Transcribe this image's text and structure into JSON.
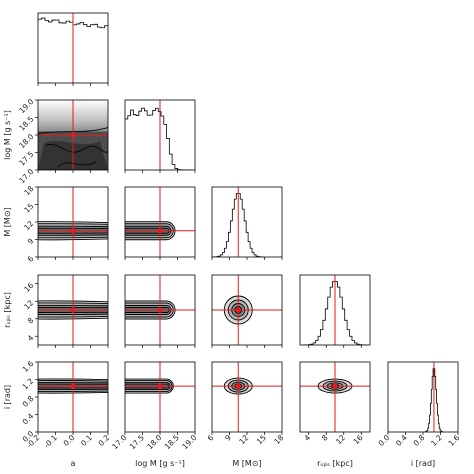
{
  "chart_data": {
    "type": "corner",
    "parameters": [
      {
        "key": "a",
        "label": "a",
        "lim": [
          -0.2,
          0.2
        ],
        "ticks": [
          "-0.2",
          "-0.1",
          "0.0",
          "0.1",
          "0.2"
        ],
        "tickvals": [
          -0.2,
          -0.1,
          0.0,
          0.1,
          0.2
        ],
        "truth": 0.0
      },
      {
        "key": "logM",
        "label": "log M [g s⁻¹]",
        "lim": [
          17.0,
          19.0
        ],
        "ticks": [
          "17.0",
          "17.5",
          "18.0",
          "18.5",
          "19.0"
        ],
        "tickvals": [
          17.0,
          17.5,
          18.0,
          18.5,
          19.0
        ],
        "truth": 18.0
      },
      {
        "key": "M",
        "label": "M [M⊙]",
        "lim": [
          6,
          18
        ],
        "ticks": [
          "6",
          "9",
          "12",
          "15",
          "18"
        ],
        "tickvals": [
          6,
          9,
          12,
          15,
          18
        ],
        "truth": 10.5
      },
      {
        "key": "r_obs",
        "label": "rₒᵦₛ [kpc]",
        "lim": [
          2,
          18
        ],
        "ticks": [
          "4",
          "8",
          "12",
          "16"
        ],
        "tickvals": [
          4,
          8,
          12,
          16
        ],
        "truth": 10.0
      },
      {
        "key": "i",
        "label": "i [rad]",
        "lim": [
          0.0,
          1.6
        ],
        "ticks": [
          "0.0",
          "0.4",
          "0.8",
          "1.2",
          "1.6"
        ],
        "tickvals": [
          0.0,
          0.4,
          0.8,
          1.2,
          1.6
        ],
        "truth": 1.05
      }
    ],
    "xlabels": [
      "a",
      "log M [g s⁻¹]",
      "M [M⊙]",
      "rₒᵦₛ [kpc]",
      "i [rad]"
    ],
    "ylabels": [
      "",
      "log M [g s⁻¹]",
      "M [M⊙]",
      "rₒᵦₛ [kpc]",
      "i [rad]"
    ],
    "marginals": [
      {
        "param": "a",
        "x": [
          -0.2,
          -0.16,
          -0.12,
          -0.08,
          -0.04,
          0.0,
          0.04,
          0.08,
          0.12,
          0.16,
          0.2
        ],
        "density": [
          0.98,
          1.0,
          0.97,
          0.99,
          0.96,
          0.95,
          0.93,
          0.92,
          0.9,
          0.88,
          0.86
        ]
      },
      {
        "param": "logM",
        "x": [
          17.0,
          17.1,
          17.2,
          17.3,
          17.4,
          17.5,
          17.6,
          17.7,
          17.8,
          17.9,
          18.0,
          18.1,
          18.2,
          18.3,
          18.4,
          18.5,
          18.6
        ],
        "density": [
          0.82,
          0.86,
          0.9,
          0.92,
          0.95,
          1.0,
          0.97,
          0.93,
          0.96,
          0.94,
          0.92,
          0.85,
          0.6,
          0.3,
          0.12,
          0.03,
          0.0
        ]
      },
      {
        "param": "M",
        "mean": 10.5,
        "sd": 1.1
      },
      {
        "param": "r_obs",
        "mean": 10.0,
        "sd": 1.8
      },
      {
        "param": "i",
        "mean": 1.05,
        "sd": 0.055
      }
    ],
    "pairs": [
      {
        "x": "a",
        "y": "logM",
        "kind": "filled-degenerate",
        "boundary_logM": 18.1
      },
      {
        "x": "a",
        "y": "M",
        "kind": "band",
        "center": 10.5
      },
      {
        "x": "logM",
        "y": "M",
        "kind": "band-capped",
        "center": 10.5,
        "edge": 18.2
      },
      {
        "x": "a",
        "y": "r_obs",
        "kind": "band",
        "center": 10.0
      },
      {
        "x": "logM",
        "y": "r_obs",
        "kind": "band-capped",
        "center": 10.0,
        "edge": 18.2
      },
      {
        "x": "M",
        "y": "r_obs",
        "kind": "ellipse",
        "cx": 10.5,
        "cy": 10.0
      },
      {
        "x": "a",
        "y": "i",
        "kind": "band",
        "center": 1.05
      },
      {
        "x": "logM",
        "y": "i",
        "kind": "band-capped",
        "center": 1.05,
        "edge": 18.2
      },
      {
        "x": "M",
        "y": "i",
        "kind": "ellipse",
        "cx": 10.5,
        "cy": 1.05
      },
      {
        "x": "r_obs",
        "y": "i",
        "kind": "ellipse",
        "cx": 10.0,
        "cy": 1.05
      }
    ],
    "truth_color": "#e41a1c",
    "contour_color": "#000000"
  }
}
